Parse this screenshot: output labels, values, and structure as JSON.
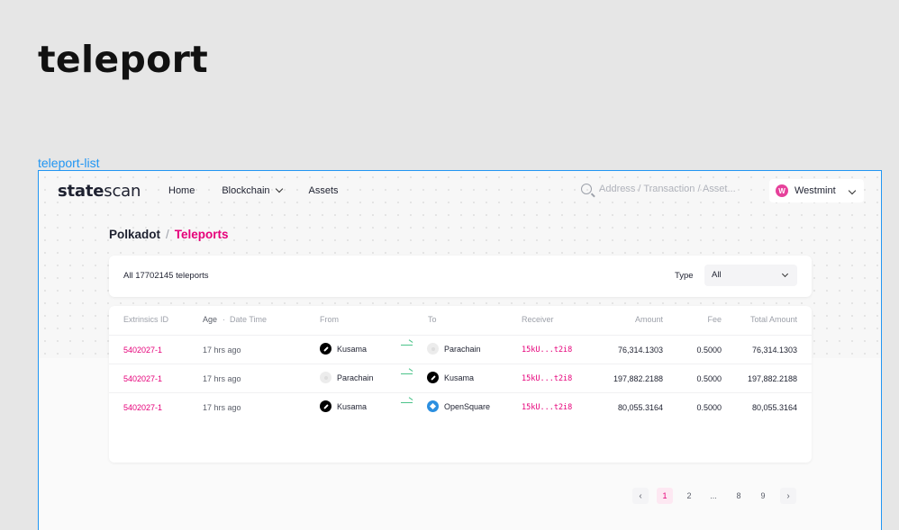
{
  "page": {
    "title": "teleport",
    "frame_label": "teleport-list"
  },
  "header": {
    "logo_bold": "state",
    "logo_rest": "scan",
    "nav": {
      "home": "Home",
      "blockchain": "Blockchain",
      "assets": "Assets"
    },
    "search_placeholder": "Address / Transaction / Asset...",
    "chain": {
      "badge": "W",
      "name": "Westmint"
    }
  },
  "breadcrumb": {
    "root": "Polkadot",
    "separator": "/",
    "current": "Teleports"
  },
  "filter": {
    "count_text": "All 17702145 teleports",
    "type_label": "Type",
    "type_value": "All"
  },
  "table": {
    "headers": {
      "extrinsic": "Extrinsics ID",
      "age": "Age",
      "age_sep": "·",
      "datetime": "Date Time",
      "from": "From",
      "to": "To",
      "receiver": "Receiver",
      "amount": "Amount",
      "fee": "Fee",
      "total": "Total Amount"
    },
    "rows": [
      {
        "id": "5402027-1",
        "age": "17 hrs ago",
        "from": "Kusama",
        "from_icon": "kusama-icon",
        "to": "Parachain",
        "to_icon": "parachain-icon",
        "receiver": "15kU...t2i8",
        "amount": "76,314.1303",
        "fee": "0.5000",
        "total": "76,314.1303"
      },
      {
        "id": "5402027-1",
        "age": "17 hrs ago",
        "from": "Parachain",
        "from_icon": "parachain-icon",
        "to": "Kusama",
        "to_icon": "kusama-icon",
        "receiver": "15kU...t2i8",
        "amount": "197,882.2188",
        "fee": "0.5000",
        "total": "197,882.2188"
      },
      {
        "id": "5402027-1",
        "age": "17 hrs ago",
        "from": "Kusama",
        "from_icon": "kusama-icon",
        "to": "OpenSquare",
        "to_icon": "opensquare-icon",
        "receiver": "15kU...t2i8",
        "amount": "80,055.3164",
        "fee": "0.5000",
        "total": "80,055.3164"
      }
    ]
  },
  "pagination": {
    "prev": "‹",
    "pages": [
      "1",
      "2",
      "...",
      "8",
      "9"
    ],
    "current": "1",
    "next": "›"
  },
  "colors": {
    "accent": "#e6007a",
    "frame": "#2196f3",
    "arrow": "#4cc38a"
  }
}
